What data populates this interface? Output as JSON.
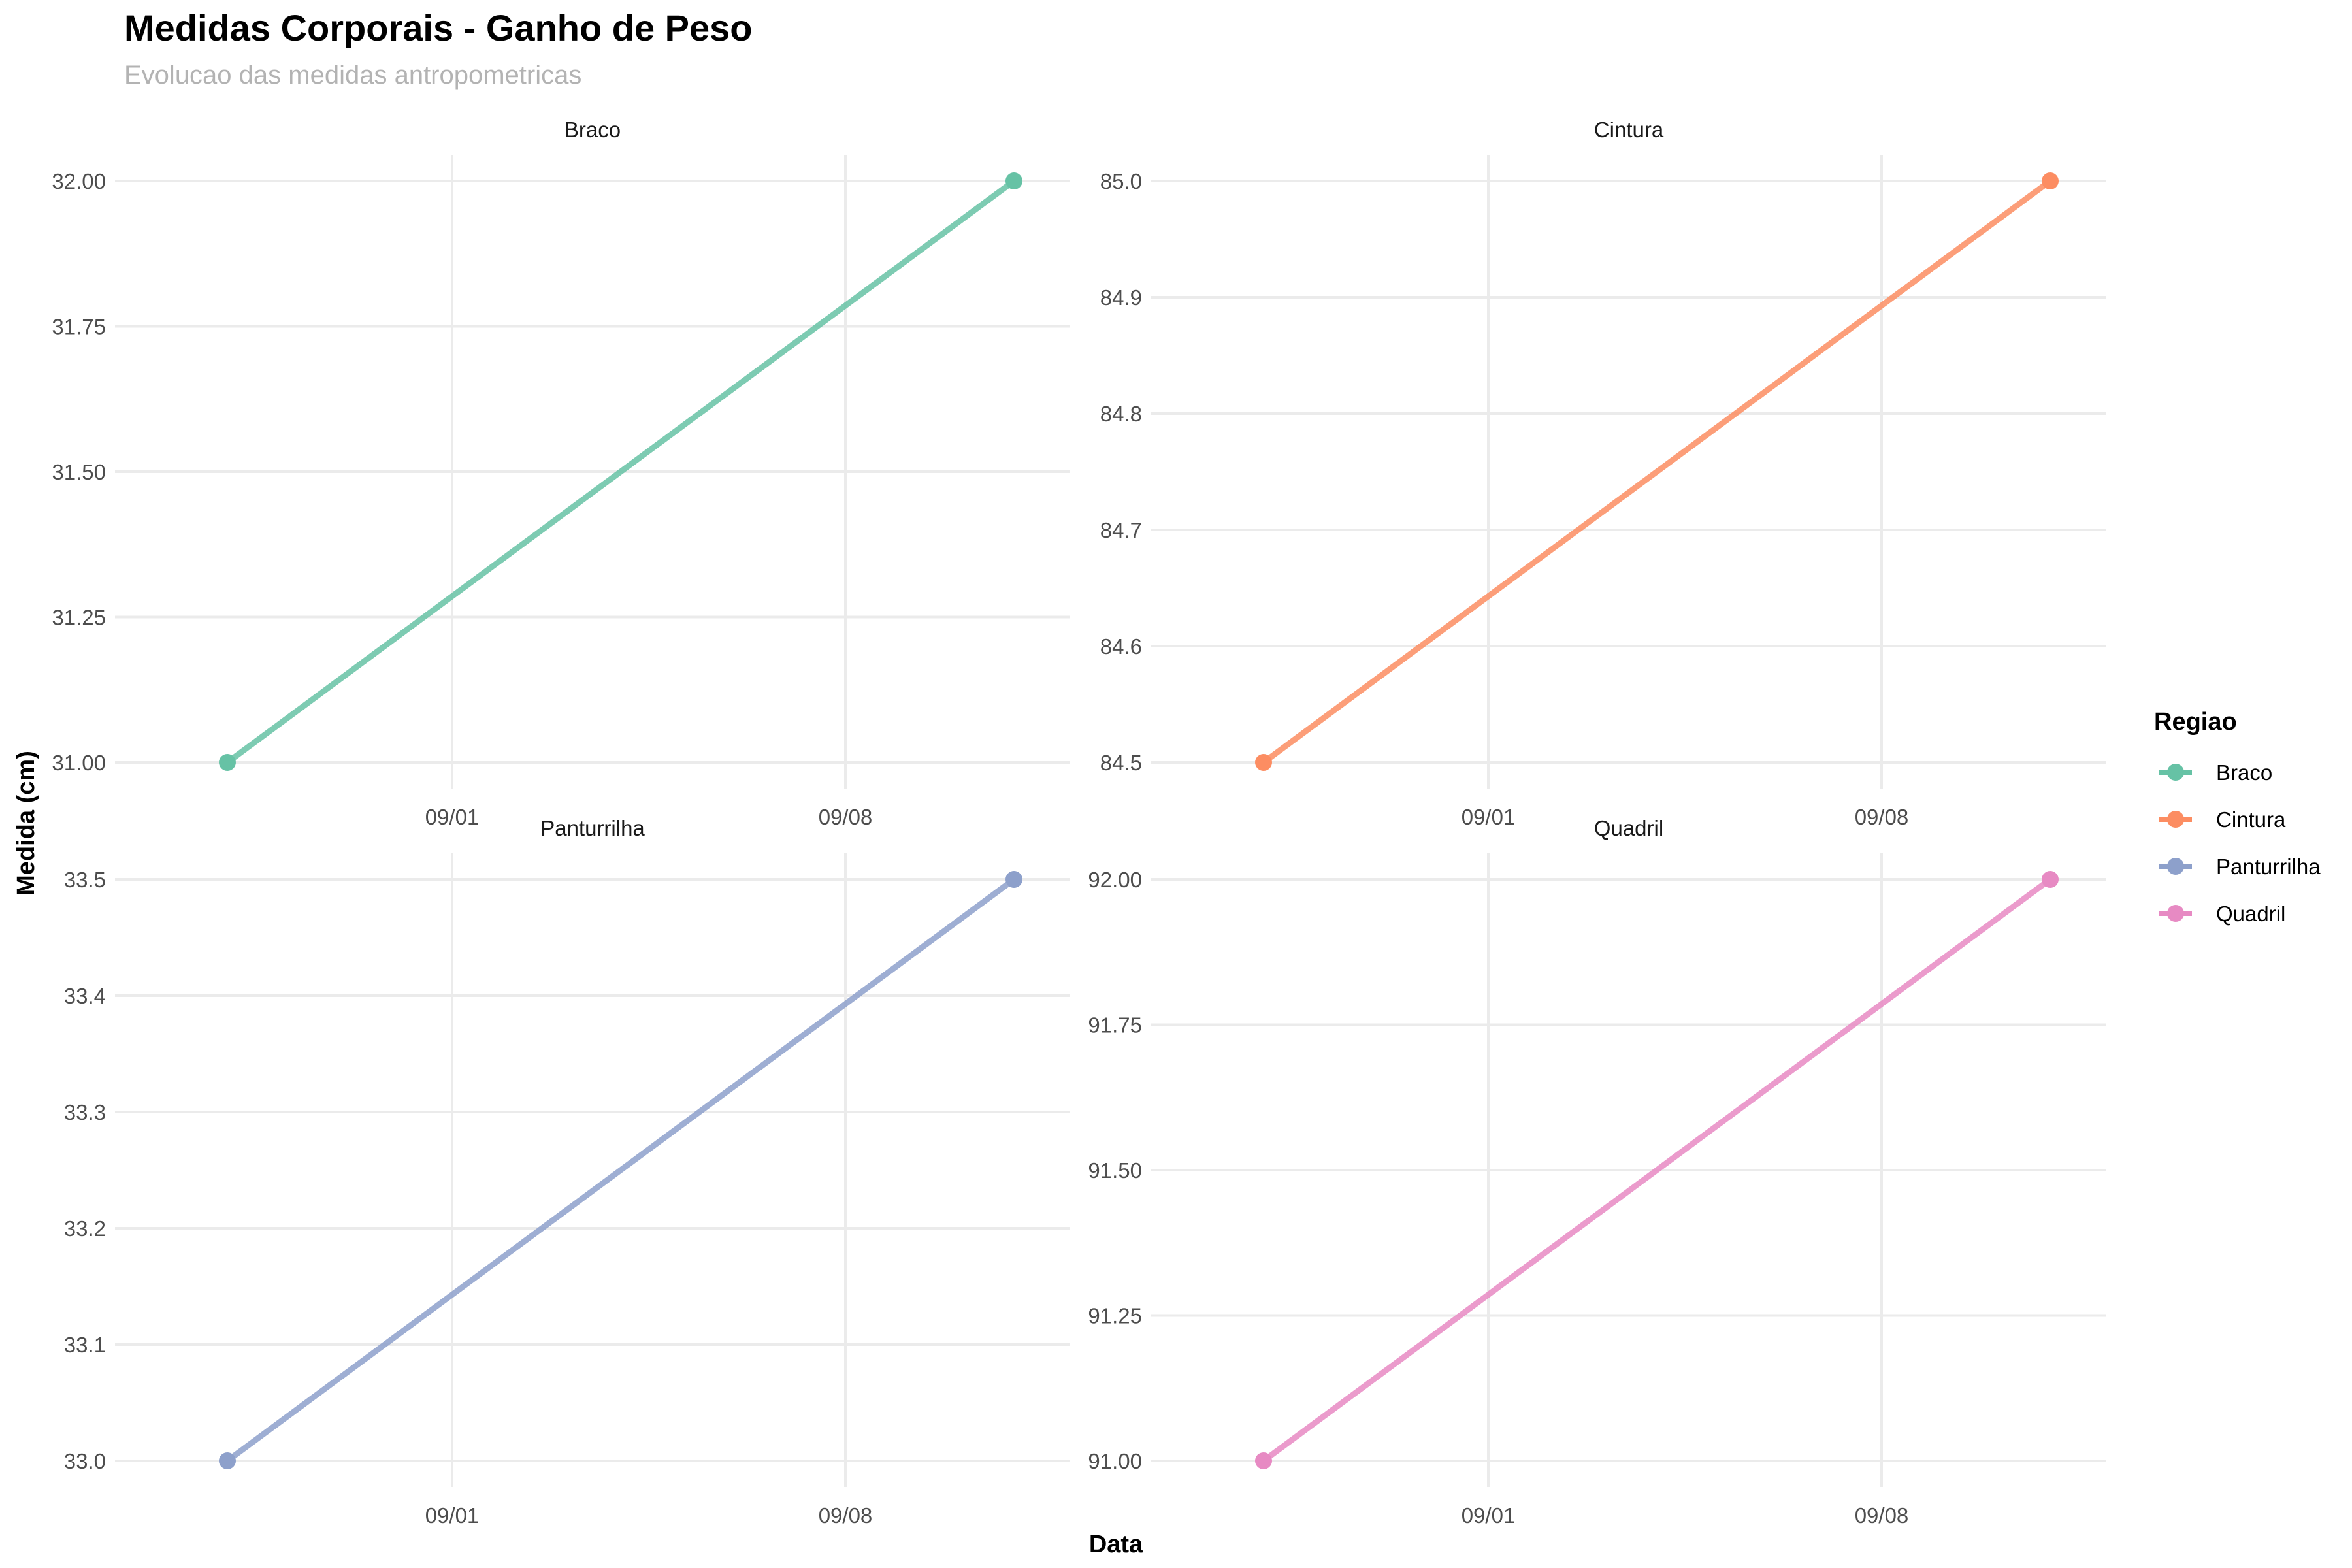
{
  "title": "Medidas Corporais - Ganho de Peso",
  "subtitle": "Evolucao das medidas antropometricas",
  "chart_data": {
    "type": "line",
    "xlabel": "Data",
    "ylabel": "Medida (cm)",
    "x_ticks": [
      {
        "label": "09/01",
        "date": "2024-09-01"
      },
      {
        "label": "09/08",
        "date": "2024-09-08"
      }
    ],
    "x_range": [
      "2024-08-26",
      "2024-09-12"
    ],
    "legend": {
      "title": "Regiao",
      "position": "right",
      "items": [
        {
          "label": "Braco",
          "color": "#66c2a5"
        },
        {
          "label": "Cintura",
          "color": "#fc8d62"
        },
        {
          "label": "Panturrilha",
          "color": "#8da0cb"
        },
        {
          "label": "Quadril",
          "color": "#e78ac3"
        }
      ]
    },
    "grid": true,
    "panels": [
      {
        "name": "Braco",
        "color": "#66c2a5",
        "ylim": [
          30.955,
          32.045
        ],
        "y_ticks": [
          "31.00",
          "31.25",
          "31.50",
          "31.75",
          "32.00"
        ],
        "y_tick_values": [
          31.0,
          31.25,
          31.5,
          31.75,
          32.0
        ],
        "points": [
          {
            "x": "2024-08-28",
            "y": 31.0
          },
          {
            "x": "2024-09-11",
            "y": 32.0
          }
        ]
      },
      {
        "name": "Cintura",
        "color": "#fc8d62",
        "ylim": [
          84.4775,
          85.0225
        ],
        "y_ticks": [
          "84.5",
          "84.6",
          "84.7",
          "84.8",
          "84.9",
          "85.0"
        ],
        "y_tick_values": [
          84.5,
          84.6,
          84.7,
          84.8,
          84.9,
          85.0
        ],
        "points": [
          {
            "x": "2024-08-28",
            "y": 84.5
          },
          {
            "x": "2024-09-11",
            "y": 85.0
          }
        ]
      },
      {
        "name": "Panturrilha",
        "color": "#8da0cb",
        "ylim": [
          32.9775,
          33.5225
        ],
        "y_ticks": [
          "33.0",
          "33.1",
          "33.2",
          "33.3",
          "33.4",
          "33.5"
        ],
        "y_tick_values": [
          33.0,
          33.1,
          33.2,
          33.3,
          33.4,
          33.5
        ],
        "points": [
          {
            "x": "2024-08-28",
            "y": 33.0
          },
          {
            "x": "2024-09-11",
            "y": 33.5
          }
        ]
      },
      {
        "name": "Quadril",
        "color": "#e78ac3",
        "ylim": [
          90.955,
          92.045
        ],
        "y_ticks": [
          "91.00",
          "91.25",
          "91.50",
          "91.75",
          "92.00"
        ],
        "y_tick_values": [
          91.0,
          91.25,
          91.5,
          91.75,
          92.0
        ],
        "points": [
          {
            "x": "2024-08-28",
            "y": 91.0
          },
          {
            "x": "2024-09-11",
            "y": 92.0
          }
        ]
      }
    ]
  }
}
